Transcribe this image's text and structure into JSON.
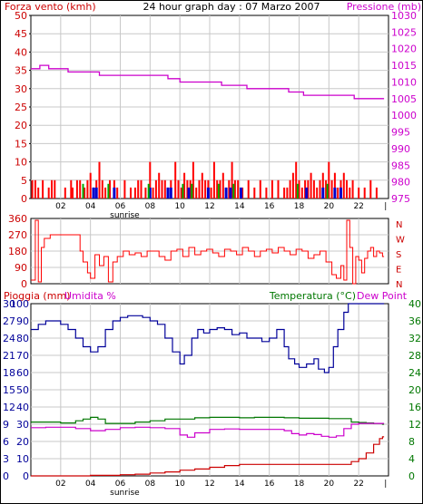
{
  "chart_data": [
    {
      "type": "line",
      "panel": "wind-and-pressure",
      "title": "24 hour graph day : 07 Marzo 2007",
      "ylabel_left": "Forza vento (kmh)",
      "ylabel_right": "Pressione (mb)",
      "yticks_left": [
        "0",
        "5",
        "10",
        "15",
        "20",
        "25",
        "30",
        "35",
        "40",
        "45",
        "50"
      ],
      "ylim_left": [
        0,
        50
      ],
      "yticks_right": [
        "975",
        "980",
        "985",
        "990",
        "995",
        "1000",
        "1005",
        "1010",
        "1015",
        "1020",
        "1025",
        "1030"
      ],
      "ylim_right": [
        975,
        1030
      ],
      "xticks": [
        "02",
        "04",
        "06",
        "08",
        "10",
        "12",
        "14",
        "16",
        "18",
        "20",
        "22",
        "|"
      ],
      "xlim": [
        0,
        24
      ],
      "annotation": "sunrise",
      "annotation_x": 6.3,
      "colors": {
        "wind": "#ff0000",
        "gust": "#00aa00",
        "wind_alt": "#0000cc",
        "pressure": "#cc00cc",
        "grid": "#c8c8c8",
        "label_wind": "#cc0000",
        "label_pressure": "#cc00cc"
      },
      "series": [
        {
          "name": "Pressione",
          "x": [
            0.0,
            0.6,
            1.2,
            2.5,
            3.5,
            4.6,
            9.2,
            10.0,
            11.5,
            12.8,
            14.5,
            16.0,
            17.3,
            18.3,
            20.8,
            21.7,
            23.6
          ],
          "y": [
            1014,
            1015,
            1014,
            1013,
            1013,
            1012,
            1011,
            1010,
            1010,
            1009,
            1008,
            1008,
            1007,
            1006,
            1006,
            1005,
            1005
          ]
        }
      ],
      "wind_bars": {
        "x": [
          0.1,
          0.3,
          0.5,
          0.8,
          1.2,
          1.4,
          1.6,
          2.3,
          2.7,
          2.8,
          3.1,
          3.3,
          3.6,
          3.8,
          4.0,
          4.2,
          4.4,
          4.6,
          4.8,
          5.0,
          5.3,
          5.6,
          5.8,
          6.3,
          6.7,
          7.0,
          7.2,
          7.4,
          7.7,
          8.0,
          8.2,
          8.4,
          8.6,
          8.8,
          9.0,
          9.2,
          9.4,
          9.7,
          9.9,
          10.1,
          10.3,
          10.5,
          10.7,
          10.9,
          11.1,
          11.3,
          11.5,
          11.7,
          11.9,
          12.1,
          12.3,
          12.5,
          12.7,
          12.9,
          13.1,
          13.3,
          13.5,
          13.7,
          13.9,
          14.2,
          14.6,
          15.0,
          15.4,
          15.8,
          16.2,
          16.6,
          17.0,
          17.2,
          17.4,
          17.6,
          17.8,
          18.0,
          18.2,
          18.4,
          18.6,
          18.8,
          19.0,
          19.2,
          19.4,
          19.6,
          19.8,
          20.0,
          20.2,
          20.4,
          20.6,
          20.8,
          21.0,
          21.2,
          21.4,
          21.6,
          22.0,
          22.4,
          22.8,
          23.2
        ],
        "y": [
          5,
          5,
          3,
          5,
          3,
          5,
          5,
          3,
          5,
          3,
          5,
          5,
          3,
          5,
          7,
          3,
          5,
          10,
          5,
          3,
          5,
          5,
          3,
          5,
          3,
          3,
          5,
          5,
          3,
          10,
          3,
          5,
          7,
          5,
          5,
          3,
          5,
          10,
          5,
          3,
          7,
          5,
          5,
          10,
          3,
          5,
          7,
          5,
          5,
          3,
          10,
          5,
          5,
          7,
          3,
          5,
          10,
          5,
          5,
          3,
          5,
          3,
          5,
          3,
          5,
          5,
          3,
          3,
          5,
          7,
          10,
          5,
          3,
          5,
          5,
          7,
          5,
          3,
          5,
          7,
          5,
          10,
          5,
          7,
          3,
          5,
          7,
          5,
          3,
          5,
          3,
          3,
          5,
          3
        ],
        "blue_x": [
          4.2,
          4.4,
          5.6,
          8.0,
          9.2,
          9.4,
          10.6,
          11.9,
          13.1,
          13.4,
          14.1,
          18.5,
          19.6,
          20.4,
          20.8
        ],
        "green_x": [
          3.5,
          5.2,
          7.9,
          10.2,
          10.8,
          12.6,
          13.6,
          17.9,
          19.9
        ]
      }
    },
    {
      "type": "line",
      "panel": "wind-direction",
      "yticks_left": [
        "0",
        "90",
        "180",
        "270",
        "360"
      ],
      "ylim": [
        0,
        360
      ],
      "compass_labels": [
        "N",
        "W",
        "S",
        "E",
        "N"
      ],
      "colors": {
        "direction": "#ff0000"
      },
      "series": [
        {
          "name": "Direzione",
          "x": [
            0.0,
            0.3,
            0.5,
            0.7,
            0.9,
            1.1,
            1.3,
            1.6,
            1.9,
            2.2,
            2.6,
            3.0,
            3.3,
            3.5,
            3.8,
            4.0,
            4.3,
            4.6,
            4.9,
            5.2,
            5.5,
            5.8,
            6.2,
            6.6,
            7.0,
            7.4,
            7.8,
            8.2,
            8.6,
            9.0,
            9.4,
            9.8,
            10.2,
            10.6,
            11.0,
            11.4,
            11.8,
            12.2,
            12.6,
            13.0,
            13.4,
            13.8,
            14.2,
            14.6,
            15.0,
            15.4,
            15.8,
            16.2,
            16.6,
            17.0,
            17.4,
            17.8,
            18.2,
            18.6,
            19.0,
            19.4,
            19.8,
            20.2,
            20.5,
            20.8,
            21.0,
            21.2,
            21.4,
            21.6,
            21.8,
            22.0,
            22.2,
            22.4,
            22.6,
            22.8,
            23.0,
            23.2,
            23.4,
            23.6
          ],
          "y": [
            20,
            350,
            10,
            200,
            250,
            250,
            270,
            270,
            270,
            270,
            270,
            270,
            180,
            120,
            60,
            30,
            160,
            100,
            150,
            10,
            120,
            150,
            180,
            160,
            170,
            150,
            180,
            180,
            150,
            130,
            180,
            190,
            150,
            200,
            160,
            180,
            190,
            170,
            150,
            190,
            180,
            160,
            200,
            180,
            150,
            180,
            190,
            170,
            200,
            180,
            160,
            190,
            180,
            140,
            160,
            180,
            120,
            50,
            30,
            100,
            20,
            350,
            200,
            0,
            150,
            130,
            60,
            140,
            180,
            200,
            150,
            180,
            170,
            150
          ]
        }
      ]
    },
    {
      "type": "line",
      "panel": "rain-humidity-temperature",
      "ylabel_left1": "Pioggia (mm)",
      "ylabel_left2": "Umidita %",
      "ylabel_right1": "Temperatura (°C)",
      "ylabel_right2": "Dew Point",
      "yticks_rain": [
        "0",
        "3",
        "6",
        "9",
        "12",
        "15",
        "18",
        "21",
        "24",
        "27",
        "30"
      ],
      "ylim_rain": [
        0,
        30
      ],
      "yticks_humidity": [
        "0",
        "10",
        "20",
        "30",
        "40",
        "50",
        "60",
        "70",
        "80",
        "90",
        "100"
      ],
      "ylim_humidity": [
        0,
        100
      ],
      "yticks_temp": [
        "0",
        "4",
        "8",
        "12",
        "16",
        "20",
        "24",
        "28",
        "32",
        "36",
        "40"
      ],
      "ylim_temp": [
        0,
        40
      ],
      "xticks": [
        "02",
        "04",
        "06",
        "08",
        "10",
        "12",
        "14",
        "16",
        "18",
        "20",
        "22",
        "|"
      ],
      "xlim": [
        0,
        24
      ],
      "annotation": "sunrise",
      "annotation_x": 6.3,
      "colors": {
        "humidity": "#000099",
        "temperature": "#007700",
        "dewpoint": "#cc00cc",
        "rain": "#cc0000",
        "label_rain": "#cc0000",
        "label_humidity": "#cc00cc",
        "label_temp": "#007700",
        "label_dew": "#cc00cc"
      },
      "series": [
        {
          "name": "Umidita %",
          "x": [
            0.0,
            0.5,
            1.0,
            1.5,
            2.0,
            2.5,
            3.0,
            3.5,
            4.0,
            4.5,
            5.0,
            5.5,
            6.0,
            6.5,
            7.0,
            7.5,
            8.0,
            8.5,
            9.0,
            9.5,
            10.0,
            10.3,
            10.8,
            11.2,
            11.6,
            12.0,
            12.5,
            13.0,
            13.5,
            14.0,
            14.5,
            15.0,
            15.5,
            16.0,
            16.5,
            17.0,
            17.3,
            17.7,
            18.0,
            18.5,
            19.0,
            19.3,
            19.7,
            20.0,
            20.3,
            20.6,
            21.0,
            21.3,
            21.6,
            22.0,
            22.5,
            23.0,
            23.6
          ],
          "y": [
            85,
            88,
            90,
            90,
            88,
            85,
            80,
            75,
            72,
            75,
            85,
            90,
            92,
            93,
            93,
            92,
            90,
            88,
            80,
            72,
            65,
            70,
            80,
            85,
            83,
            85,
            86,
            85,
            82,
            83,
            80,
            80,
            78,
            80,
            85,
            75,
            68,
            65,
            63,
            65,
            68,
            62,
            60,
            63,
            75,
            85,
            95,
            100,
            100,
            100,
            100,
            100,
            100
          ]
        },
        {
          "name": "Temperatura (°C)",
          "x": [
            0.0,
            1.0,
            2.0,
            3.0,
            3.5,
            4.0,
            4.5,
            5.0,
            6.0,
            7.0,
            8.0,
            9.0,
            10.0,
            11.0,
            12.0,
            13.0,
            14.0,
            15.0,
            16.0,
            17.0,
            18.0,
            19.0,
            20.0,
            21.0,
            21.5,
            22.0,
            22.5,
            23.0,
            23.6
          ],
          "y": [
            12.5,
            12.5,
            12.3,
            12.8,
            13.2,
            13.6,
            13.2,
            12.2,
            12.2,
            12.5,
            12.8,
            13.2,
            13.2,
            13.5,
            13.6,
            13.6,
            13.5,
            13.6,
            13.6,
            13.5,
            13.4,
            13.4,
            13.3,
            13.3,
            12.5,
            12.4,
            12.3,
            12.2,
            12.0
          ]
        },
        {
          "name": "Dew Point",
          "x": [
            0.0,
            1.0,
            2.0,
            3.0,
            4.0,
            5.0,
            6.0,
            7.0,
            8.0,
            9.0,
            10.0,
            10.5,
            11.0,
            12.0,
            13.0,
            14.0,
            15.0,
            16.0,
            17.0,
            17.5,
            18.0,
            18.5,
            19.0,
            19.5,
            20.0,
            20.5,
            21.0,
            21.5,
            22.0
          ],
          "y": [
            11.2,
            11.3,
            11.3,
            11.0,
            10.5,
            10.8,
            11.2,
            11.3,
            11.2,
            11.0,
            9.5,
            9.0,
            10.0,
            10.8,
            10.9,
            10.8,
            10.8,
            10.8,
            10.5,
            9.8,
            9.5,
            9.8,
            9.6,
            9.2,
            9.0,
            9.3,
            11.0,
            12.0,
            12.2
          ]
        },
        {
          "name": "Pioggia (mm)",
          "x": [
            0.0,
            2.0,
            4.0,
            5.0,
            6.0,
            7.0,
            8.0,
            9.0,
            10.0,
            11.0,
            12.0,
            13.0,
            14.0,
            15.0,
            16.0,
            17.0,
            18.0,
            19.0,
            20.0,
            20.5,
            21.0,
            21.5,
            22.0,
            22.5,
            23.0,
            23.4,
            23.6
          ],
          "y": [
            0.0,
            0.0,
            0.1,
            0.1,
            0.2,
            0.3,
            0.5,
            0.7,
            1.0,
            1.2,
            1.5,
            1.8,
            2.0,
            2.0,
            2.0,
            2.0,
            2.0,
            2.0,
            2.0,
            2.0,
            2.0,
            2.5,
            3.0,
            4.0,
            5.5,
            6.5,
            6.8
          ]
        }
      ]
    }
  ]
}
